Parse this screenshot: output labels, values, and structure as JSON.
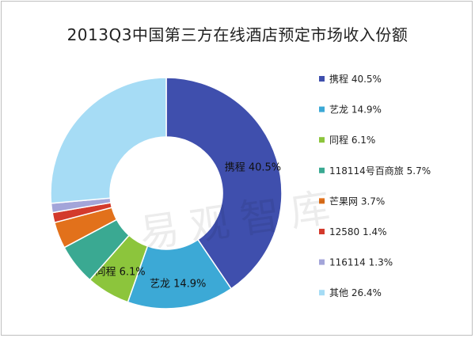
{
  "watermark": "易观智库",
  "chart_data": {
    "type": "pie",
    "style": "donut",
    "title": "2013Q3中国第三方在线酒店预定市场收入份额",
    "legend_position": "right",
    "slices": [
      {
        "label": "携程",
        "value": 40.5,
        "value_text": "40.5%",
        "color": "#3f4fad",
        "show_label": true
      },
      {
        "label": "艺龙",
        "value": 14.9,
        "value_text": "14.9%",
        "color": "#3ca9d6",
        "show_label": true
      },
      {
        "label": "同程",
        "value": 6.1,
        "value_text": "6.1%",
        "color": "#8cc53c",
        "show_label": true
      },
      {
        "label": "118114号百商旅",
        "value": 5.7,
        "value_text": "5.7%",
        "color": "#3aa992",
        "show_label": false
      },
      {
        "label": "芒果网",
        "value": 3.7,
        "value_text": "3.7%",
        "color": "#e2711b",
        "show_label": false
      },
      {
        "label": "12580",
        "value": 1.4,
        "value_text": "1.4%",
        "color": "#d33a2c",
        "show_label": false
      },
      {
        "label": "116114",
        "value": 1.3,
        "value_text": "1.3%",
        "color": "#a3a5d9",
        "show_label": false
      },
      {
        "label": "其他",
        "value": 26.4,
        "value_text": "26.4%",
        "color": "#a6dcf5",
        "show_label": false
      }
    ]
  }
}
